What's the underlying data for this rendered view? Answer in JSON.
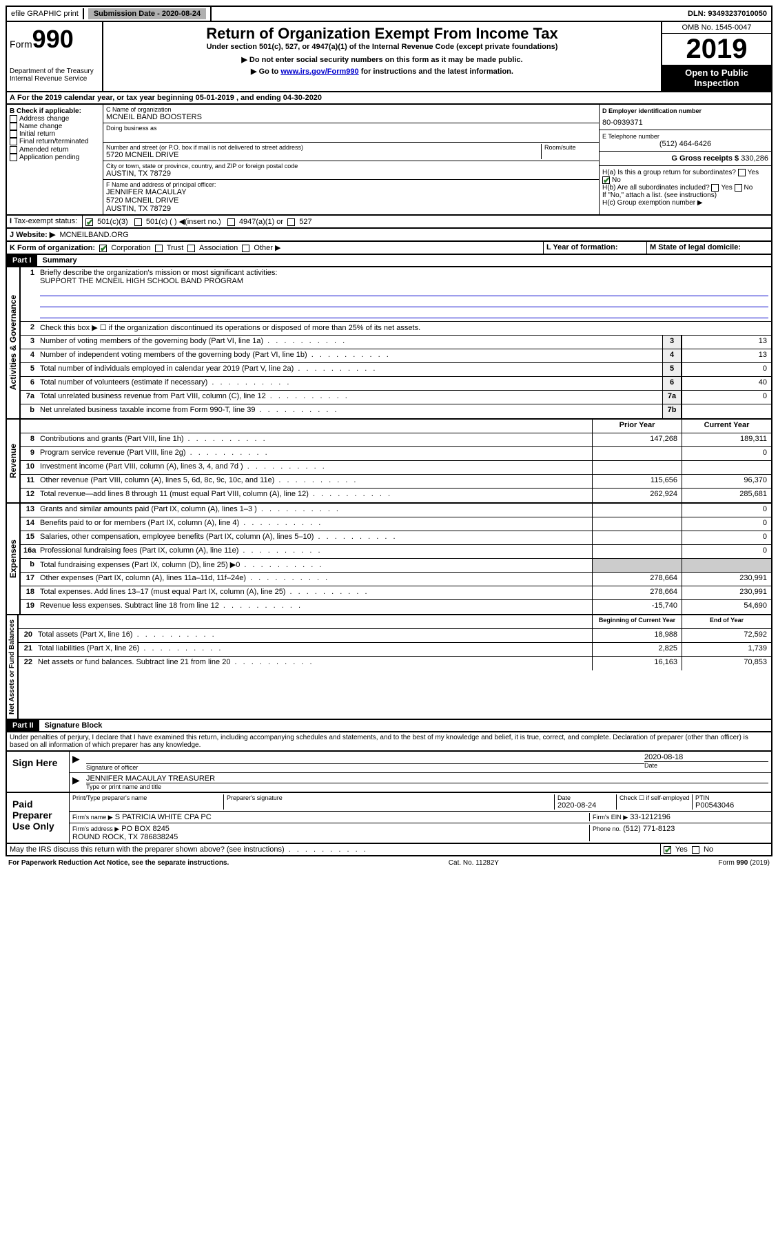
{
  "topbar": {
    "efile": "efile GRAPHIC print",
    "submission_label": "Submission Date - 2020-08-24",
    "dln": "DLN: 93493237010050"
  },
  "header": {
    "form_label": "Form",
    "form_num": "990",
    "dept": "Department of the Treasury\nInternal Revenue Service",
    "title": "Return of Organization Exempt From Income Tax",
    "subtitle": "Under section 501(c), 527, or 4947(a)(1) of the Internal Revenue Code (except private foundations)",
    "note1": "▶ Do not enter social security numbers on this form as it may be made public.",
    "note2_pre": "▶ Go to ",
    "note2_link": "www.irs.gov/Form990",
    "note2_post": " for instructions and the latest information.",
    "omb": "OMB No. 1545-0047",
    "year": "2019",
    "public": "Open to Public Inspection"
  },
  "lineA": "For the 2019 calendar year, or tax year beginning 05-01-2019   , and ending 04-30-2020",
  "sectionB": {
    "label": "B Check if applicable:",
    "items": [
      "Address change",
      "Name change",
      "Initial return",
      "Final return/terminated",
      "Amended return",
      "Application pending"
    ]
  },
  "sectionC": {
    "name_label": "C Name of organization",
    "name": "MCNEIL BAND BOOSTERS",
    "dba_label": "Doing business as",
    "addr_label": "Number and street (or P.O. box if mail is not delivered to street address)",
    "room_label": "Room/suite",
    "addr": "5720 MCNEIL DRIVE",
    "city_label": "City or town, state or province, country, and ZIP or foreign postal code",
    "city": "AUSTIN, TX  78729",
    "officer_label": "F  Name and address of principal officer:",
    "officer": "JENNIFER MACAULAY\n5720 MCNEIL DRIVE\nAUSTIN, TX  78729"
  },
  "sectionD": {
    "ein_label": "D Employer identification number",
    "ein": "80-0939371",
    "phone_label": "E Telephone number",
    "phone": "(512) 464-6426",
    "gross_label": "G Gross receipts $",
    "gross": "330,286"
  },
  "sectionH": {
    "a": "H(a)  Is this a group return for subordinates?",
    "b": "H(b)  Are all subordinates included?",
    "note": "If \"No,\" attach a list. (see instructions)",
    "c": "H(c)  Group exemption number ▶"
  },
  "lineI": {
    "label": "Tax-exempt status:",
    "opts": [
      "501(c)(3)",
      "501(c) (  ) ◀(insert no.)",
      "4947(a)(1) or",
      "527"
    ]
  },
  "lineJ": {
    "label": "Website: ▶",
    "value": "MCNEILBAND.ORG"
  },
  "lineK": {
    "label": "K Form of organization:",
    "opts": [
      "Corporation",
      "Trust",
      "Association",
      "Other ▶"
    ],
    "year_label": "L Year of formation:",
    "state_label": "M State of legal domicile:"
  },
  "part1": {
    "label": "Part I",
    "title": "Summary",
    "sections": {
      "gov": "Activities & Governance",
      "rev": "Revenue",
      "exp": "Expenses",
      "net": "Net Assets or Fund Balances"
    },
    "l1_label": "Briefly describe the organization's mission or most significant activities:",
    "l1_value": "SUPPORT THE MCNEIL HIGH SCHOOL BAND PROGRAM",
    "l2": "Check this box ▶ ☐  if the organization discontinued its operations or disposed of more than 25% of its net assets.",
    "lines": [
      {
        "n": "3",
        "d": "Number of voting members of the governing body (Part VI, line 1a)",
        "c": "3",
        "v": "13"
      },
      {
        "n": "4",
        "d": "Number of independent voting members of the governing body (Part VI, line 1b)",
        "c": "4",
        "v": "13"
      },
      {
        "n": "5",
        "d": "Total number of individuals employed in calendar year 2019 (Part V, line 2a)",
        "c": "5",
        "v": "0"
      },
      {
        "n": "6",
        "d": "Total number of volunteers (estimate if necessary)",
        "c": "6",
        "v": "40"
      },
      {
        "n": "7a",
        "d": "Total unrelated business revenue from Part VIII, column (C), line 12",
        "c": "7a",
        "v": "0"
      },
      {
        "n": "b",
        "d": "Net unrelated business taxable income from Form 990-T, line 39",
        "c": "7b",
        "v": ""
      }
    ],
    "col_prior": "Prior Year",
    "col_current": "Current Year",
    "revenue": [
      {
        "n": "8",
        "d": "Contributions and grants (Part VIII, line 1h)",
        "p": "147,268",
        "c": "189,311"
      },
      {
        "n": "9",
        "d": "Program service revenue (Part VIII, line 2g)",
        "p": "",
        "c": "0"
      },
      {
        "n": "10",
        "d": "Investment income (Part VIII, column (A), lines 3, 4, and 7d )",
        "p": "",
        "c": ""
      },
      {
        "n": "11",
        "d": "Other revenue (Part VIII, column (A), lines 5, 6d, 8c, 9c, 10c, and 11e)",
        "p": "115,656",
        "c": "96,370"
      },
      {
        "n": "12",
        "d": "Total revenue—add lines 8 through 11 (must equal Part VIII, column (A), line 12)",
        "p": "262,924",
        "c": "285,681"
      }
    ],
    "expenses": [
      {
        "n": "13",
        "d": "Grants and similar amounts paid (Part IX, column (A), lines 1–3 )",
        "p": "",
        "c": "0"
      },
      {
        "n": "14",
        "d": "Benefits paid to or for members (Part IX, column (A), line 4)",
        "p": "",
        "c": "0"
      },
      {
        "n": "15",
        "d": "Salaries, other compensation, employee benefits (Part IX, column (A), lines 5–10)",
        "p": "",
        "c": "0"
      },
      {
        "n": "16a",
        "d": "Professional fundraising fees (Part IX, column (A), line 11e)",
        "p": "",
        "c": "0"
      },
      {
        "n": "b",
        "d": "Total fundraising expenses (Part IX, column (D), line 25) ▶0",
        "p": "shade",
        "c": "shade"
      },
      {
        "n": "17",
        "d": "Other expenses (Part IX, column (A), lines 11a–11d, 11f–24e)",
        "p": "278,664",
        "c": "230,991"
      },
      {
        "n": "18",
        "d": "Total expenses. Add lines 13–17 (must equal Part IX, column (A), line 25)",
        "p": "278,664",
        "c": "230,991"
      },
      {
        "n": "19",
        "d": "Revenue less expenses. Subtract line 18 from line 12",
        "p": "-15,740",
        "c": "54,690"
      }
    ],
    "col_begin": "Beginning of Current Year",
    "col_end": "End of Year",
    "net": [
      {
        "n": "20",
        "d": "Total assets (Part X, line 16)",
        "p": "18,988",
        "c": "72,592"
      },
      {
        "n": "21",
        "d": "Total liabilities (Part X, line 26)",
        "p": "2,825",
        "c": "1,739"
      },
      {
        "n": "22",
        "d": "Net assets or fund balances. Subtract line 21 from line 20",
        "p": "16,163",
        "c": "70,853"
      }
    ]
  },
  "part2": {
    "label": "Part II",
    "title": "Signature Block",
    "perjury": "Under penalties of perjury, I declare that I have examined this return, including accompanying schedules and statements, and to the best of my knowledge and belief, it is true, correct, and complete. Declaration of preparer (other than officer) is based on all information of which preparer has any knowledge.",
    "sign_here": "Sign Here",
    "sig_officer": "Signature of officer",
    "date_val": "2020-08-18",
    "date_lbl": "Date",
    "name_val": "JENNIFER MACAULAY TREASURER",
    "name_lbl": "Type or print name and title",
    "paid": "Paid Preparer Use Only",
    "prep_name_lbl": "Print/Type preparer's name",
    "prep_sig_lbl": "Preparer's signature",
    "prep_date_lbl": "Date",
    "prep_date": "2020-08-24",
    "self_emp": "Check ☐ if self-employed",
    "ptin_lbl": "PTIN",
    "ptin": "P00543046",
    "firm_name_lbl": "Firm's name    ▶",
    "firm_name": "S PATRICIA WHITE CPA PC",
    "firm_ein_lbl": "Firm's EIN ▶",
    "firm_ein": "33-1212196",
    "firm_addr_lbl": "Firm's address ▶",
    "firm_addr": "PO BOX 8245\nROUND ROCK, TX  786838245",
    "firm_phone_lbl": "Phone no.",
    "firm_phone": "(512) 771-8123",
    "discuss": "May the IRS discuss this return with the preparer shown above? (see instructions)"
  },
  "footer": {
    "pra": "For Paperwork Reduction Act Notice, see the separate instructions.",
    "cat": "Cat. No. 11282Y",
    "form": "Form 990 (2019)"
  }
}
